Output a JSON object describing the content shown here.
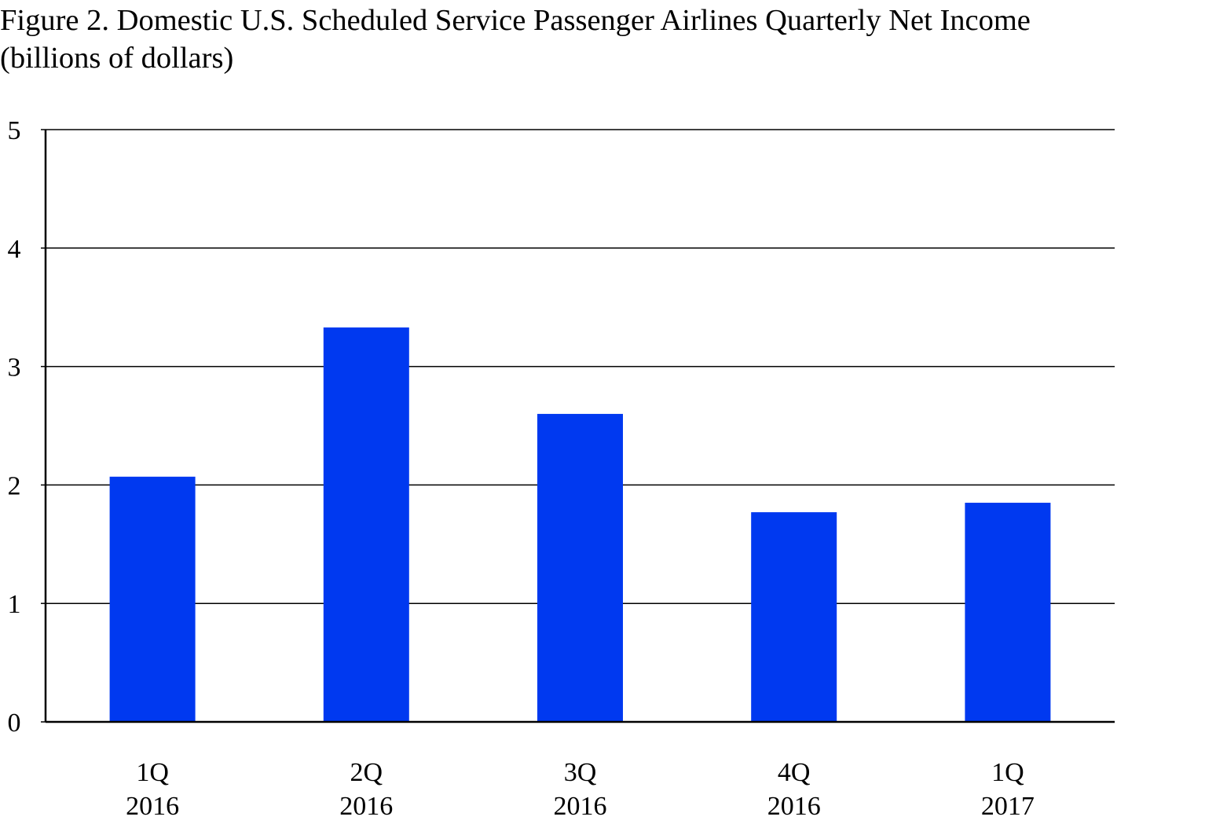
{
  "chart_data": {
    "type": "bar",
    "title": "Figure 2. Domestic U.S. Scheduled Service Passenger Airlines Quarterly Net Income",
    "subtitle": "(billions of dollars)",
    "categories": [
      {
        "quarter": "1Q",
        "year": "2016"
      },
      {
        "quarter": "2Q",
        "year": "2016"
      },
      {
        "quarter": "3Q",
        "year": "2016"
      },
      {
        "quarter": "4Q",
        "year": "2016"
      },
      {
        "quarter": "1Q",
        "year": "2017"
      }
    ],
    "values": [
      2.07,
      3.33,
      2.6,
      1.77,
      1.85
    ],
    "ylim": [
      0,
      5
    ],
    "yticks": [
      "0",
      "1",
      "2",
      "3",
      "4",
      "5"
    ],
    "xlabel": "",
    "ylabel": "",
    "grid": true,
    "legend": "none",
    "bar_color": "#0039F0"
  }
}
